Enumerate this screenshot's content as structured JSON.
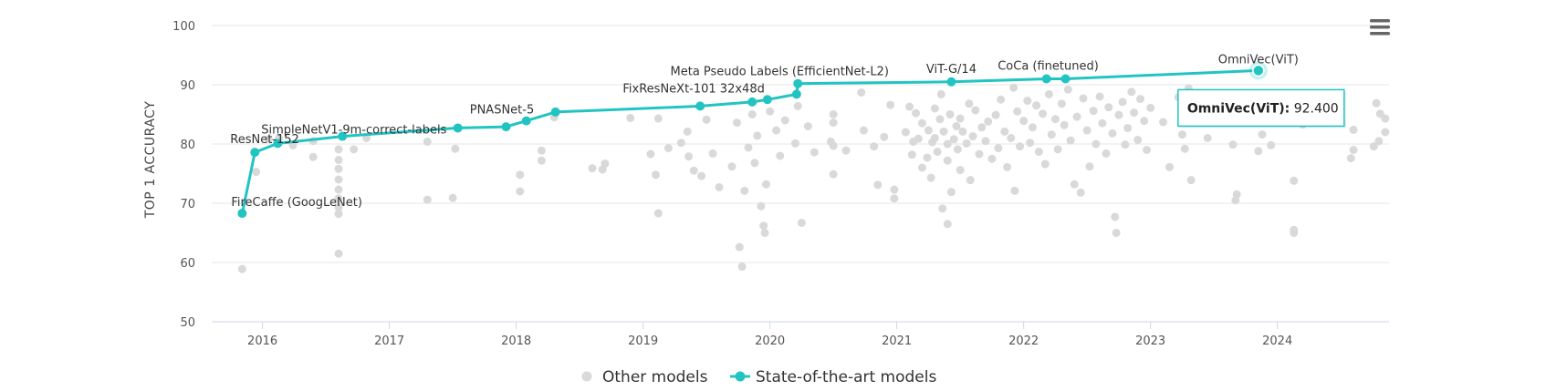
{
  "chart_data": {
    "type": "scatter",
    "xlabel": "",
    "ylabel": "TOP 1 ACCURACY",
    "ylim": [
      50,
      100
    ],
    "yticks": [
      50,
      60,
      70,
      80,
      90,
      100
    ],
    "xlim": [
      2015.6,
      2024.88
    ],
    "xticks": [
      "2016",
      "2017",
      "2018",
      "2019",
      "2020",
      "2021",
      "2022",
      "2023",
      "2024"
    ],
    "grid": true,
    "legend_position": "bottom-center",
    "colors": {
      "sota": "#22c4c2",
      "other": "#d9d9d9"
    },
    "series": [
      {
        "name": "Other models",
        "marker": "circle",
        "points": [
          [
            2015.84,
            58.9
          ],
          [
            2015.95,
            75.3
          ],
          [
            2016.05,
            80.8
          ],
          [
            2016.13,
            81.0
          ],
          [
            2016.24,
            79.8
          ],
          [
            2016.4,
            77.8
          ],
          [
            2016.4,
            80.5
          ],
          [
            2016.6,
            61.5
          ],
          [
            2016.6,
            68.2
          ],
          [
            2016.6,
            69.3
          ],
          [
            2016.6,
            70.8
          ],
          [
            2016.6,
            72.3
          ],
          [
            2016.6,
            74.0
          ],
          [
            2016.6,
            75.8
          ],
          [
            2016.6,
            77.3
          ],
          [
            2016.6,
            79.1
          ],
          [
            2016.72,
            79.1
          ],
          [
            2016.82,
            81.0
          ],
          [
            2017.3,
            70.6
          ],
          [
            2017.3,
            80.4
          ],
          [
            2017.5,
            70.9
          ],
          [
            2017.52,
            79.2
          ],
          [
            2018.03,
            74.8
          ],
          [
            2018.03,
            72.0
          ],
          [
            2018.2,
            78.9
          ],
          [
            2018.2,
            77.2
          ],
          [
            2018.3,
            84.5
          ],
          [
            2018.6,
            75.9
          ],
          [
            2018.68,
            75.7
          ],
          [
            2018.7,
            76.7
          ],
          [
            2018.9,
            84.4
          ],
          [
            2019.06,
            78.3
          ],
          [
            2019.1,
            74.8
          ],
          [
            2019.12,
            68.3
          ],
          [
            2019.12,
            84.3
          ],
          [
            2019.2,
            79.3
          ],
          [
            2019.3,
            80.2
          ],
          [
            2019.35,
            82.1
          ],
          [
            2019.36,
            77.9
          ],
          [
            2019.4,
            75.5
          ],
          [
            2019.46,
            74.6
          ],
          [
            2019.5,
            84.1
          ],
          [
            2019.55,
            78.4
          ],
          [
            2019.6,
            72.7
          ],
          [
            2019.7,
            76.2
          ],
          [
            2019.74,
            83.6
          ],
          [
            2019.76,
            62.6
          ],
          [
            2019.78,
            59.3
          ],
          [
            2019.8,
            72.1
          ],
          [
            2019.83,
            79.4
          ],
          [
            2019.86,
            85.0
          ],
          [
            2019.88,
            76.8
          ],
          [
            2019.9,
            81.4
          ],
          [
            2019.93,
            69.5
          ],
          [
            2019.95,
            66.2
          ],
          [
            2019.96,
            65.0
          ],
          [
            2019.97,
            73.2
          ],
          [
            2020.0,
            85.5
          ],
          [
            2020.05,
            82.3
          ],
          [
            2020.08,
            78.0
          ],
          [
            2020.12,
            84.0
          ],
          [
            2020.2,
            80.1
          ],
          [
            2020.22,
            86.4
          ],
          [
            2020.25,
            66.7
          ],
          [
            2020.3,
            83.0
          ],
          [
            2020.35,
            78.6
          ],
          [
            2020.48,
            80.4
          ],
          [
            2020.5,
            85.0
          ],
          [
            2020.5,
            83.6
          ],
          [
            2020.5,
            79.7
          ],
          [
            2020.5,
            74.9
          ],
          [
            2020.6,
            78.9
          ],
          [
            2020.72,
            88.7
          ],
          [
            2020.74,
            82.3
          ],
          [
            2020.82,
            79.6
          ],
          [
            2020.85,
            73.1
          ],
          [
            2020.9,
            81.2
          ],
          [
            2020.95,
            86.6
          ],
          [
            2020.98,
            72.3
          ],
          [
            2020.98,
            70.8
          ],
          [
            2021.07,
            82.0
          ],
          [
            2021.1,
            86.3
          ],
          [
            2021.12,
            78.2
          ],
          [
            2021.13,
            80.4
          ],
          [
            2021.15,
            85.2
          ],
          [
            2021.17,
            80.9
          ],
          [
            2021.2,
            76.0
          ],
          [
            2021.2,
            83.5
          ],
          [
            2021.24,
            77.7
          ],
          [
            2021.25,
            82.3
          ],
          [
            2021.27,
            74.3
          ],
          [
            2021.28,
            80.3
          ],
          [
            2021.3,
            86.0
          ],
          [
            2021.3,
            81.0
          ],
          [
            2021.32,
            78.7
          ],
          [
            2021.34,
            84.2
          ],
          [
            2021.35,
            88.4
          ],
          [
            2021.36,
            69.1
          ],
          [
            2021.37,
            82.1
          ],
          [
            2021.4,
            80.0
          ],
          [
            2021.4,
            77.2
          ],
          [
            2021.4,
            66.5
          ],
          [
            2021.42,
            85.0
          ],
          [
            2021.43,
            71.9
          ],
          [
            2021.45,
            80.8
          ],
          [
            2021.47,
            83.0
          ],
          [
            2021.48,
            79.1
          ],
          [
            2021.5,
            84.3
          ],
          [
            2021.5,
            75.6
          ],
          [
            2021.52,
            82.1
          ],
          [
            2021.55,
            80.1
          ],
          [
            2021.57,
            86.8
          ],
          [
            2021.58,
            73.9
          ],
          [
            2021.6,
            81.3
          ],
          [
            2021.62,
            85.7
          ],
          [
            2021.65,
            78.3
          ],
          [
            2021.67,
            82.8
          ],
          [
            2021.7,
            80.5
          ],
          [
            2021.72,
            83.8
          ],
          [
            2021.75,
            77.5
          ],
          [
            2021.78,
            84.9
          ],
          [
            2021.8,
            79.3
          ],
          [
            2021.82,
            87.5
          ],
          [
            2021.85,
            82.1
          ],
          [
            2021.87,
            76.1
          ],
          [
            2021.9,
            81.0
          ],
          [
            2021.92,
            89.5
          ],
          [
            2021.93,
            72.1
          ],
          [
            2021.95,
            85.5
          ],
          [
            2021.97,
            79.6
          ],
          [
            2022.0,
            83.9
          ],
          [
            2022.03,
            87.3
          ],
          [
            2022.05,
            80.2
          ],
          [
            2022.07,
            82.8
          ],
          [
            2022.1,
            86.5
          ],
          [
            2022.12,
            78.7
          ],
          [
            2022.15,
            85.1
          ],
          [
            2022.17,
            76.6
          ],
          [
            2022.2,
            88.4
          ],
          [
            2022.22,
            81.6
          ],
          [
            2022.25,
            84.2
          ],
          [
            2022.27,
            79.1
          ],
          [
            2022.3,
            86.8
          ],
          [
            2022.32,
            83.2
          ],
          [
            2022.35,
            89.2
          ],
          [
            2022.37,
            80.6
          ],
          [
            2022.4,
            73.2
          ],
          [
            2022.42,
            84.6
          ],
          [
            2022.45,
            71.8
          ],
          [
            2022.47,
            87.7
          ],
          [
            2022.5,
            82.3
          ],
          [
            2022.52,
            76.2
          ],
          [
            2022.55,
            85.6
          ],
          [
            2022.57,
            80.0
          ],
          [
            2022.6,
            88.0
          ],
          [
            2022.62,
            83.5
          ],
          [
            2022.65,
            78.4
          ],
          [
            2022.67,
            86.2
          ],
          [
            2022.7,
            81.8
          ],
          [
            2022.72,
            67.7
          ],
          [
            2022.73,
            65.0
          ],
          [
            2022.75,
            84.9
          ],
          [
            2022.78,
            87.1
          ],
          [
            2022.8,
            79.9
          ],
          [
            2022.82,
            82.7
          ],
          [
            2022.85,
            88.8
          ],
          [
            2022.87,
            85.3
          ],
          [
            2022.9,
            80.7
          ],
          [
            2022.92,
            87.6
          ],
          [
            2022.95,
            83.9
          ],
          [
            2022.97,
            79.0
          ],
          [
            2023.0,
            86.1
          ],
          [
            2023.1,
            83.7
          ],
          [
            2023.15,
            76.1
          ],
          [
            2023.22,
            87.9
          ],
          [
            2023.25,
            81.6
          ],
          [
            2023.27,
            79.2
          ],
          [
            2023.3,
            89.4
          ],
          [
            2023.32,
            73.9
          ],
          [
            2023.35,
            84.5
          ],
          [
            2023.4,
            86.8
          ],
          [
            2023.45,
            81.0
          ],
          [
            2023.52,
            84.2
          ],
          [
            2023.6,
            88.2
          ],
          [
            2023.65,
            79.9
          ],
          [
            2023.67,
            70.5
          ],
          [
            2023.68,
            71.5
          ],
          [
            2023.72,
            83.7
          ],
          [
            2023.8,
            86.5
          ],
          [
            2023.85,
            78.8
          ],
          [
            2023.88,
            81.6
          ],
          [
            2023.95,
            84.1
          ],
          [
            2023.95,
            79.8
          ],
          [
            2024.05,
            87.9
          ],
          [
            2024.13,
            73.8
          ],
          [
            2024.13,
            65.5
          ],
          [
            2024.13,
            65.0
          ],
          [
            2024.2,
            83.3
          ],
          [
            2024.58,
            77.6
          ],
          [
            2024.6,
            82.4
          ],
          [
            2024.6,
            79.0
          ],
          [
            2024.76,
            79.6
          ],
          [
            2024.78,
            86.9
          ],
          [
            2024.8,
            80.5
          ],
          [
            2024.81,
            85.1
          ],
          [
            2024.85,
            84.3
          ],
          [
            2024.85,
            82.0
          ]
        ]
      },
      {
        "name": "State-of-the-art models",
        "marker": "circle-line",
        "points": [
          [
            2015.84,
            68.3
          ],
          [
            2015.94,
            78.6
          ],
          [
            2016.12,
            80.1
          ],
          [
            2016.63,
            81.3
          ],
          [
            2017.54,
            82.7
          ],
          [
            2017.92,
            82.9
          ],
          [
            2018.08,
            83.9
          ],
          [
            2018.31,
            85.4
          ],
          [
            2019.45,
            86.4
          ],
          [
            2019.86,
            87.1
          ],
          [
            2019.98,
            87.5
          ],
          [
            2020.21,
            88.4
          ],
          [
            2020.22,
            90.2
          ],
          [
            2021.43,
            90.5
          ],
          [
            2022.18,
            91.0
          ],
          [
            2022.33,
            91.0
          ],
          [
            2023.85,
            92.4
          ]
        ]
      }
    ],
    "annotations": [
      {
        "text": "FireCaffe (GoogLeNet)",
        "x": 2015.84,
        "y": 68.3
      },
      {
        "text": "ResNet-152",
        "x": 2015.94,
        "y": 78.6
      },
      {
        "text": "SimpleNetV1-9m-correct-labels",
        "x": 2016.12,
        "y": 80.1
      },
      {
        "text": "PNASNet-5",
        "x": 2018.08,
        "y": 83.9
      },
      {
        "text": "FixResNeXt-101 32x48d",
        "x": 2019.98,
        "y": 87.5
      },
      {
        "text": "Meta Pseudo Labels (EfficientNet-L2)",
        "x": 2020.22,
        "y": 90.2
      },
      {
        "text": "ViT-G/14",
        "x": 2021.43,
        "y": 90.5
      },
      {
        "text": "CoCa (finetuned)",
        "x": 2022.33,
        "y": 91.0
      },
      {
        "text": "OmniVec(ViT)",
        "x": 2023.85,
        "y": 92.4
      }
    ],
    "tooltip": {
      "name": "OmniVec(ViT)",
      "value": "92.400",
      "x": 2023.85,
      "y": 92.4
    }
  },
  "menu_icon": "hamburger-menu-icon"
}
